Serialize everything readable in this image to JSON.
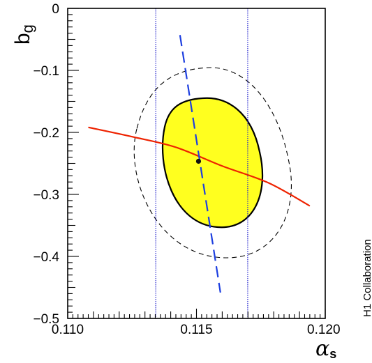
{
  "chart_data": {
    "type": "scatter",
    "xlabel": "α",
    "xlabel_sub": "s",
    "ylabel": "b",
    "ylabel_sub": "g",
    "side_text": "H1 Collaboration",
    "xlim": [
      0.11,
      0.12
    ],
    "ylim": [
      -0.5,
      0
    ],
    "x_tick_labels": [
      "0.110",
      "0.115",
      "0.120"
    ],
    "y_tick_labels": [
      "0",
      "−0.1",
      "−0.2",
      "−0.3",
      "−0.4",
      "−0.5"
    ],
    "grid": false,
    "best_fit_point": {
      "x": 0.11508,
      "y": -0.2466
    },
    "inner_ellipse": {
      "fill": "#ffff1f",
      "edge": "solid black"
    },
    "outer_ellipse": {
      "edge": "dashed black"
    },
    "vertical_lines": [
      0.11342,
      0.11699
    ],
    "vertical_lines_color": "#2222cc",
    "series": [
      {
        "style": "solid",
        "color": "#ee2200",
        "points": [
          [
            0.1108,
            -0.1919
          ],
          [
            0.1125,
            -0.207
          ],
          [
            0.1142,
            -0.224
          ],
          [
            0.116,
            -0.2542
          ],
          [
            0.1178,
            -0.2815
          ],
          [
            0.1194,
            -0.3186
          ]
        ]
      },
      {
        "style": "dashed",
        "color": "#1d3fe0",
        "points": [
          [
            0.11436,
            -0.043
          ],
          [
            0.11593,
            -0.4583
          ]
        ]
      }
    ]
  }
}
